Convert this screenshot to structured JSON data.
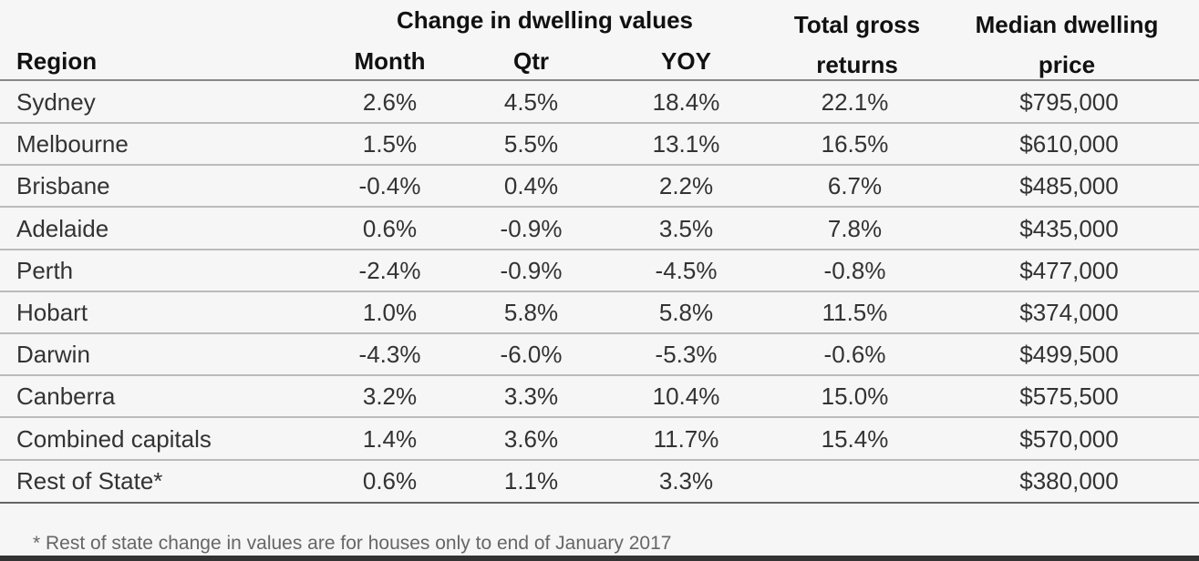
{
  "header": {
    "region": "Region",
    "group": "Change in dwelling values",
    "columns": [
      "Month",
      "Qtr",
      "YOY"
    ],
    "total": "Total gross returns",
    "median": "Median dwelling price"
  },
  "table": {
    "rows": [
      [
        "Sydney",
        "2.6%",
        "4.5%",
        "18.4%",
        "22.1%",
        "$795,000"
      ],
      [
        "Melbourne",
        "1.5%",
        "5.5%",
        "13.1%",
        "16.5%",
        "$610,000"
      ],
      [
        "Brisbane",
        "-0.4%",
        "0.4%",
        "2.2%",
        "6.7%",
        "$485,000"
      ],
      [
        "Adelaide",
        "0.6%",
        "-0.9%",
        "3.5%",
        "7.8%",
        "$435,000"
      ],
      [
        "Perth",
        "-2.4%",
        "-0.9%",
        "-4.5%",
        "-0.8%",
        "$477,000"
      ],
      [
        "Hobart",
        "1.0%",
        "5.8%",
        "5.8%",
        "11.5%",
        "$374,000"
      ],
      [
        "Darwin",
        "-4.3%",
        "-6.0%",
        "-5.3%",
        "-0.6%",
        "$499,500"
      ],
      [
        "Canberra",
        "3.2%",
        "3.3%",
        "10.4%",
        "15.0%",
        "$575,500"
      ],
      [
        "Combined capitals",
        "1.4%",
        "3.6%",
        "11.7%",
        "15.4%",
        "$570,000"
      ],
      [
        "Rest of State*",
        "0.6%",
        "1.1%",
        "3.3%",
        null,
        "$380,000"
      ]
    ]
  },
  "footnote": "* Rest of state change in values are for houses only to end of January 2017"
}
